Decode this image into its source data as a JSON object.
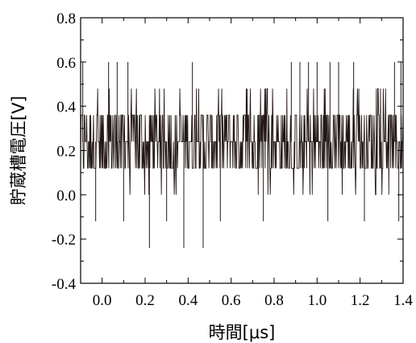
{
  "chart_data": {
    "type": "line",
    "xlabel": "時間[μs]",
    "ylabel": "貯蔵槽電圧[V]",
    "xlim": [
      -0.1,
      1.4
    ],
    "ylim": [
      -0.4,
      0.8
    ],
    "x_ticks": [
      "0.0",
      "0.2",
      "0.4",
      "0.6",
      "0.8",
      "1.0",
      "1.2",
      "1.4"
    ],
    "y_ticks": [
      "-0.4",
      "-0.2",
      "0.0",
      "0.2",
      "0.4",
      "0.6",
      "0.8"
    ],
    "x_tick_values": [
      0.0,
      0.2,
      0.4,
      0.6,
      0.8,
      1.0,
      1.2,
      1.4
    ],
    "y_tick_values": [
      -0.4,
      -0.2,
      0.0,
      0.2,
      0.4,
      0.6,
      0.8
    ],
    "quantization_levels": [
      -0.24,
      -0.12,
      0.0,
      0.12,
      0.24,
      0.36,
      0.48,
      0.6
    ],
    "dominant_range": [
      0.12,
      0.36
    ],
    "spikes": [
      {
        "x": 0.22,
        "y": -0.24
      },
      {
        "x": 0.38,
        "y": -0.24
      },
      {
        "x": 0.47,
        "y": -0.24
      },
      {
        "x": -0.03,
        "y": -0.12
      },
      {
        "x": 0.1,
        "y": -0.12
      },
      {
        "x": 0.3,
        "y": -0.12
      },
      {
        "x": 0.55,
        "y": -0.12
      },
      {
        "x": 0.75,
        "y": -0.12
      },
      {
        "x": 1.05,
        "y": -0.12
      },
      {
        "x": 1.22,
        "y": -0.12
      },
      {
        "x": 1.38,
        "y": -0.12
      },
      {
        "x": -0.09,
        "y": 0.6
      },
      {
        "x": 0.03,
        "y": 0.6
      },
      {
        "x": 0.07,
        "y": 0.6
      },
      {
        "x": 0.12,
        "y": 0.6
      },
      {
        "x": 0.42,
        "y": 0.6
      },
      {
        "x": 0.88,
        "y": 0.6
      },
      {
        "x": 0.92,
        "y": 0.6
      },
      {
        "x": 0.96,
        "y": 0.6
      },
      {
        "x": 1.0,
        "y": 0.6
      },
      {
        "x": 1.06,
        "y": 0.6
      },
      {
        "x": 1.1,
        "y": 0.6
      },
      {
        "x": 1.17,
        "y": 0.6
      },
      {
        "x": 1.36,
        "y": 0.6
      },
      {
        "x": 1.39,
        "y": 0.6
      }
    ],
    "grid": false,
    "line_color": "#231815"
  }
}
